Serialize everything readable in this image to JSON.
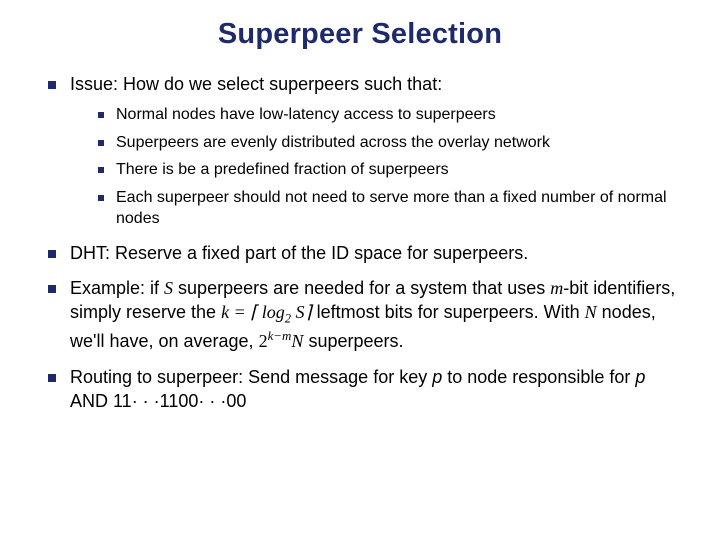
{
  "title": "Superpeer Selection",
  "colors": {
    "title": "#1e2a6b",
    "bullet": "#1e2a6b",
    "text": "#000000",
    "background": "#ffffff"
  },
  "typography": {
    "title_fontsize": 29,
    "outer_fontsize": 18,
    "inner_fontsize": 16,
    "title_weight": "bold",
    "body_family": "Verdana",
    "math_family": "Times New Roman"
  },
  "bullets": {
    "outer": [
      {
        "text": "Issue: How do we select superpeers such that:",
        "sub": [
          "Normal nodes have low-latency access to superpeers",
          "Superpeers are evenly distributed across the overlay network",
          "There is be a predefined fraction of superpeers",
          "Each superpeer should not need to serve more than a fixed number of normal nodes"
        ]
      },
      {
        "text": "DHT: Reserve a fixed part of the ID space for superpeers."
      },
      {
        "pre": "Example: if ",
        "var_S": "S",
        "mid1": " superpeers are needed for a system that uses ",
        "var_m": "m",
        "mid2": "-bit identifiers, simply reserve the ",
        "formula_k": "k = ⌈ log",
        "formula_sub": "2",
        "formula_S": " S",
        "formula_close": "⌉",
        "mid3": " leftmost bits for superpeers. With ",
        "var_N": "N",
        "mid4": " nodes, we'll have, on average, ",
        "formula_2": "2",
        "formula_exp": "k−m",
        "var_N2": "N",
        "mid5": " superpeers."
      },
      {
        "pre": "Routing to superpeer: Send message for key ",
        "var_p": "p",
        "mid1": " to node responsible for ",
        "var_p2": "p",
        "mid2": " AND 11· · ·1100· · ·00"
      }
    ]
  }
}
